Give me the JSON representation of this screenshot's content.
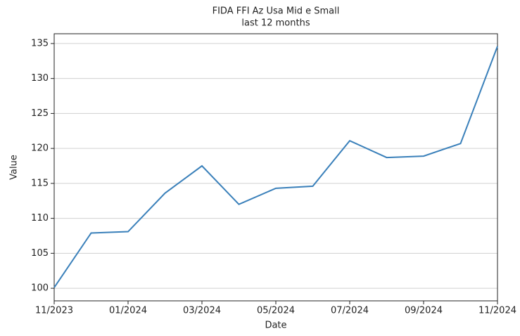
{
  "chart_data": {
    "type": "line",
    "title": "FIDA FFI Az Usa Mid e Small",
    "subtitle": "last 12 months",
    "x_label": "Date",
    "y_label": "Value",
    "x": [
      "11/2023",
      "12/2023",
      "01/2024",
      "02/2024",
      "03/2024",
      "04/2024",
      "05/2024",
      "06/2024",
      "07/2024",
      "08/2024",
      "09/2024",
      "10/2024",
      "11/2024"
    ],
    "xticks": [
      "11/2023",
      "01/2024",
      "03/2024",
      "05/2024",
      "07/2024",
      "09/2024",
      "11/2024"
    ],
    "series": [
      {
        "name": "Value",
        "color": "#3a80ba",
        "values": [
          100.1,
          107.9,
          108.1,
          113.6,
          117.5,
          112.0,
          114.3,
          114.6,
          121.1,
          118.7,
          118.9,
          120.7,
          134.6
        ]
      }
    ],
    "ylim": [
      98.2,
      136.4
    ],
    "yticks": [
      100,
      105,
      110,
      115,
      120,
      125,
      130,
      135
    ],
    "grid": true
  }
}
